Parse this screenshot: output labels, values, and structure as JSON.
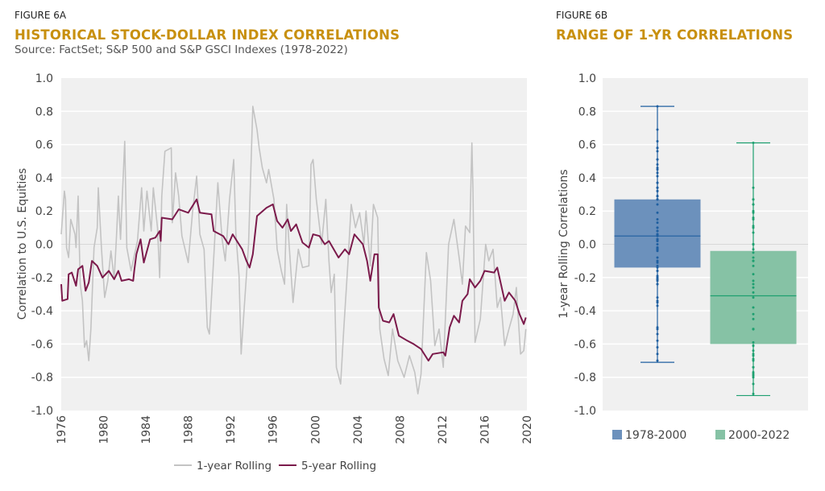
{
  "figure_a": {
    "label": "FIGURE 6A",
    "title": "HISTORICAL STOCK-DOLLAR INDEX CORRELATIONS",
    "source": "Source: FactSet; S&P 500 and S&P GSCI Indexes (1978-2022)"
  },
  "figure_b": {
    "label": "FIGURE 6B",
    "title": "RANGE OF 1-YR CORRELATIONS"
  },
  "colors": {
    "title": "#c8900f",
    "one_year": "#c3c3c3",
    "five_year": "#7b1a4b",
    "box_1978": "#6c91bc",
    "box_2000": "#86c2a5",
    "dots_1978": "#1f5fa0",
    "dots_2000": "#1ea070",
    "plot_bg": "#f0f0f0"
  },
  "chart_data": [
    {
      "type": "line",
      "xlabel": "",
      "ylabel": "Correlation to U.S. Equities",
      "xlim": [
        1976,
        2020
      ],
      "ylim": [
        -1.0,
        1.0
      ],
      "x_ticks": [
        "1976",
        "1980",
        "1984",
        "1988",
        "1992",
        "1996",
        "2000",
        "2004",
        "2008",
        "2012",
        "2016",
        "2020"
      ],
      "y_ticks": [
        "1.0",
        "0.8",
        "0.6",
        "0.4",
        "0.2",
        "0.0",
        "-0.2",
        "-0.4",
        "-0.6",
        "-0.8",
        "-1.0"
      ],
      "grid": "horizontal",
      "legend": "bottom",
      "series": [
        {
          "name": "1-year Rolling",
          "points": [
            [
              1976.0,
              0.06
            ],
            [
              1976.3,
              0.32
            ],
            [
              1976.4,
              0.27
            ],
            [
              1976.5,
              -0.02
            ],
            [
              1976.7,
              -0.08
            ],
            [
              1976.9,
              0.15
            ],
            [
              1977.3,
              0.06
            ],
            [
              1977.4,
              -0.02
            ],
            [
              1977.6,
              0.29
            ],
            [
              1977.8,
              -0.24
            ],
            [
              1978.0,
              -0.34
            ],
            [
              1978.2,
              -0.62
            ],
            [
              1978.4,
              -0.58
            ],
            [
              1978.6,
              -0.7
            ],
            [
              1978.8,
              -0.51
            ],
            [
              1979.1,
              -0.02
            ],
            [
              1979.4,
              0.1
            ],
            [
              1979.5,
              0.34
            ],
            [
              1979.8,
              -0.02
            ],
            [
              1980.1,
              -0.32
            ],
            [
              1980.4,
              -0.22
            ],
            [
              1980.7,
              -0.04
            ],
            [
              1981.0,
              -0.21
            ],
            [
              1981.2,
              0.02
            ],
            [
              1981.4,
              0.29
            ],
            [
              1981.6,
              0.03
            ],
            [
              1982.0,
              0.62
            ],
            [
              1982.2,
              -0.02
            ],
            [
              1982.6,
              -0.16
            ],
            [
              1983.2,
              0.02
            ],
            [
              1983.6,
              0.34
            ],
            [
              1983.8,
              0.08
            ],
            [
              1984.1,
              0.32
            ],
            [
              1984.5,
              0.08
            ],
            [
              1984.7,
              0.34
            ],
            [
              1985.1,
              0.1
            ],
            [
              1985.3,
              -0.2
            ],
            [
              1985.5,
              0.29
            ],
            [
              1985.8,
              0.56
            ],
            [
              1986.4,
              0.58
            ],
            [
              1986.5,
              0.13
            ],
            [
              1986.8,
              0.43
            ],
            [
              1987.1,
              0.29
            ],
            [
              1987.4,
              0.05
            ],
            [
              1988.0,
              -0.11
            ],
            [
              1988.4,
              0.19
            ],
            [
              1988.8,
              0.41
            ],
            [
              1989.1,
              0.06
            ],
            [
              1989.5,
              -0.03
            ],
            [
              1989.8,
              -0.5
            ],
            [
              1990.0,
              -0.54
            ],
            [
              1990.3,
              -0.21
            ],
            [
              1990.8,
              0.37
            ],
            [
              1991.2,
              0.03
            ],
            [
              1991.5,
              -0.1
            ],
            [
              1991.9,
              0.27
            ],
            [
              1992.3,
              0.51
            ],
            [
              1992.5,
              0.06
            ],
            [
              1992.8,
              -0.19
            ],
            [
              1993.0,
              -0.66
            ],
            [
              1993.3,
              -0.37
            ],
            [
              1993.7,
              0.0
            ],
            [
              1994.1,
              0.83
            ],
            [
              1994.5,
              0.69
            ],
            [
              1994.7,
              0.58
            ],
            [
              1995.0,
              0.46
            ],
            [
              1995.4,
              0.37
            ],
            [
              1995.6,
              0.45
            ],
            [
              1996.1,
              0.27
            ],
            [
              1996.4,
              -0.03
            ],
            [
              1996.8,
              -0.16
            ],
            [
              1997.1,
              -0.24
            ],
            [
              1997.3,
              0.24
            ],
            [
              1997.5,
              0.03
            ],
            [
              1997.9,
              -0.35
            ],
            [
              1998.4,
              -0.03
            ],
            [
              1998.8,
              -0.14
            ],
            [
              1999.4,
              -0.13
            ],
            [
              1999.6,
              0.48
            ],
            [
              1999.8,
              0.51
            ],
            [
              2000.1,
              0.27
            ],
            [
              2000.6,
              0.0
            ],
            [
              2001.0,
              0.27
            ],
            [
              2001.3,
              -0.1
            ],
            [
              2001.5,
              -0.29
            ],
            [
              2001.8,
              -0.18
            ],
            [
              2002.0,
              -0.74
            ],
            [
              2002.4,
              -0.84
            ],
            [
              2002.7,
              -0.51
            ],
            [
              2003.1,
              -0.1
            ],
            [
              2003.4,
              0.24
            ],
            [
              2003.8,
              0.1
            ],
            [
              2004.2,
              0.19
            ],
            [
              2004.6,
              0.0
            ],
            [
              2004.8,
              0.2
            ],
            [
              2005.2,
              -0.13
            ],
            [
              2005.5,
              0.24
            ],
            [
              2005.9,
              0.16
            ],
            [
              2006.1,
              -0.51
            ],
            [
              2006.5,
              -0.69
            ],
            [
              2006.9,
              -0.79
            ],
            [
              2007.3,
              -0.51
            ],
            [
              2007.8,
              -0.7
            ],
            [
              2008.4,
              -0.8
            ],
            [
              2008.9,
              -0.67
            ],
            [
              2009.4,
              -0.77
            ],
            [
              2009.7,
              -0.9
            ],
            [
              2010.0,
              -0.78
            ],
            [
              2010.5,
              -0.05
            ],
            [
              2010.9,
              -0.22
            ],
            [
              2011.3,
              -0.61
            ],
            [
              2011.7,
              -0.51
            ],
            [
              2012.1,
              -0.74
            ],
            [
              2012.6,
              0.0
            ],
            [
              2013.1,
              0.15
            ],
            [
              2013.6,
              -0.08
            ],
            [
              2013.9,
              -0.24
            ],
            [
              2014.2,
              0.11
            ],
            [
              2014.6,
              0.07
            ],
            [
              2014.8,
              0.61
            ],
            [
              2014.9,
              0.34
            ],
            [
              2015.1,
              -0.59
            ],
            [
              2015.6,
              -0.45
            ],
            [
              2016.1,
              0.0
            ],
            [
              2016.4,
              -0.1
            ],
            [
              2016.8,
              -0.03
            ],
            [
              2017.2,
              -0.38
            ],
            [
              2017.5,
              -0.32
            ],
            [
              2017.9,
              -0.61
            ],
            [
              2018.3,
              -0.51
            ],
            [
              2018.7,
              -0.42
            ],
            [
              2019.0,
              -0.26
            ],
            [
              2019.4,
              -0.66
            ],
            [
              2019.7,
              -0.64
            ],
            [
              2019.9,
              -0.51
            ]
          ]
        },
        {
          "name": "5-year Rolling",
          "points": [
            [
              1976.0,
              -0.24
            ],
            [
              1976.1,
              -0.34
            ],
            [
              1976.6,
              -0.33
            ],
            [
              1976.7,
              -0.18
            ],
            [
              1977.0,
              -0.17
            ],
            [
              1977.4,
              -0.25
            ],
            [
              1977.6,
              -0.15
            ],
            [
              1978.0,
              -0.13
            ],
            [
              1978.3,
              -0.28
            ],
            [
              1978.6,
              -0.23
            ],
            [
              1978.9,
              -0.1
            ],
            [
              1979.4,
              -0.13
            ],
            [
              1979.9,
              -0.2
            ],
            [
              1980.5,
              -0.16
            ],
            [
              1981.0,
              -0.21
            ],
            [
              1981.4,
              -0.16
            ],
            [
              1981.7,
              -0.22
            ],
            [
              1982.4,
              -0.21
            ],
            [
              1982.8,
              -0.22
            ],
            [
              1982.9,
              -0.16
            ],
            [
              1983.1,
              -0.06
            ],
            [
              1983.5,
              0.03
            ],
            [
              1983.8,
              -0.11
            ],
            [
              1984.4,
              0.03
            ],
            [
              1984.9,
              0.04
            ],
            [
              1985.3,
              0.08
            ],
            [
              1985.4,
              0.02
            ],
            [
              1985.5,
              0.16
            ],
            [
              1986.5,
              0.15
            ],
            [
              1987.1,
              0.21
            ],
            [
              1988.0,
              0.19
            ],
            [
              1988.8,
              0.27
            ],
            [
              1989.1,
              0.19
            ],
            [
              1990.2,
              0.18
            ],
            [
              1990.4,
              0.08
            ],
            [
              1991.3,
              0.05
            ],
            [
              1991.8,
              0.0
            ],
            [
              1992.2,
              0.06
            ],
            [
              1993.1,
              -0.03
            ],
            [
              1993.5,
              -0.1
            ],
            [
              1993.8,
              -0.14
            ],
            [
              1994.1,
              -0.06
            ],
            [
              1994.5,
              0.17
            ],
            [
              1995.4,
              0.22
            ],
            [
              1996.0,
              0.24
            ],
            [
              1996.4,
              0.14
            ],
            [
              1996.9,
              0.1
            ],
            [
              1997.4,
              0.15
            ],
            [
              1997.7,
              0.08
            ],
            [
              1998.2,
              0.12
            ],
            [
              1998.8,
              0.01
            ],
            [
              1999.4,
              -0.02
            ],
            [
              1999.8,
              0.06
            ],
            [
              2000.4,
              0.05
            ],
            [
              2000.9,
              0.0
            ],
            [
              2001.3,
              0.02
            ],
            [
              2002.2,
              -0.08
            ],
            [
              2002.8,
              -0.03
            ],
            [
              2003.2,
              -0.06
            ],
            [
              2003.7,
              0.06
            ],
            [
              2004.5,
              0.0
            ],
            [
              2004.9,
              -0.1
            ],
            [
              2005.2,
              -0.22
            ],
            [
              2005.6,
              -0.06
            ],
            [
              2005.9,
              -0.06
            ],
            [
              2006.0,
              -0.38
            ],
            [
              2006.4,
              -0.46
            ],
            [
              2007.0,
              -0.47
            ],
            [
              2007.4,
              -0.42
            ],
            [
              2007.9,
              -0.55
            ],
            [
              2008.7,
              -0.58
            ],
            [
              2009.3,
              -0.6
            ],
            [
              2010.0,
              -0.63
            ],
            [
              2010.7,
              -0.7
            ],
            [
              2011.1,
              -0.66
            ],
            [
              2012.1,
              -0.65
            ],
            [
              2012.3,
              -0.67
            ],
            [
              2012.7,
              -0.5
            ],
            [
              2013.1,
              -0.43
            ],
            [
              2013.6,
              -0.47
            ],
            [
              2013.9,
              -0.34
            ],
            [
              2014.4,
              -0.3
            ],
            [
              2014.6,
              -0.21
            ],
            [
              2015.1,
              -0.26
            ],
            [
              2015.6,
              -0.22
            ],
            [
              2016.0,
              -0.16
            ],
            [
              2016.9,
              -0.17
            ],
            [
              2017.2,
              -0.14
            ],
            [
              2017.9,
              -0.34
            ],
            [
              2018.3,
              -0.29
            ],
            [
              2018.9,
              -0.34
            ],
            [
              2019.3,
              -0.42
            ],
            [
              2019.7,
              -0.48
            ],
            [
              2019.9,
              -0.44
            ]
          ]
        }
      ]
    },
    {
      "type": "box",
      "ylabel": "1-year Rolling Correlations",
      "ylim": [
        -1.0,
        1.0
      ],
      "y_ticks": [
        "1.0",
        "0.8",
        "0.6",
        "0.4",
        "0.2",
        "0.0",
        "-0.2",
        "-0.4",
        "-0.6",
        "-0.8",
        "-1.0"
      ],
      "grid": "horizontal",
      "legend": "bottom",
      "boxes": [
        {
          "name": "1978-2000",
          "min": -0.71,
          "q1": -0.14,
          "median": 0.05,
          "q3": 0.27,
          "max": 0.83
        },
        {
          "name": "2000-2022",
          "min": -0.91,
          "q1": -0.6,
          "median": -0.31,
          "q3": -0.04,
          "max": 0.61
        }
      ]
    }
  ]
}
